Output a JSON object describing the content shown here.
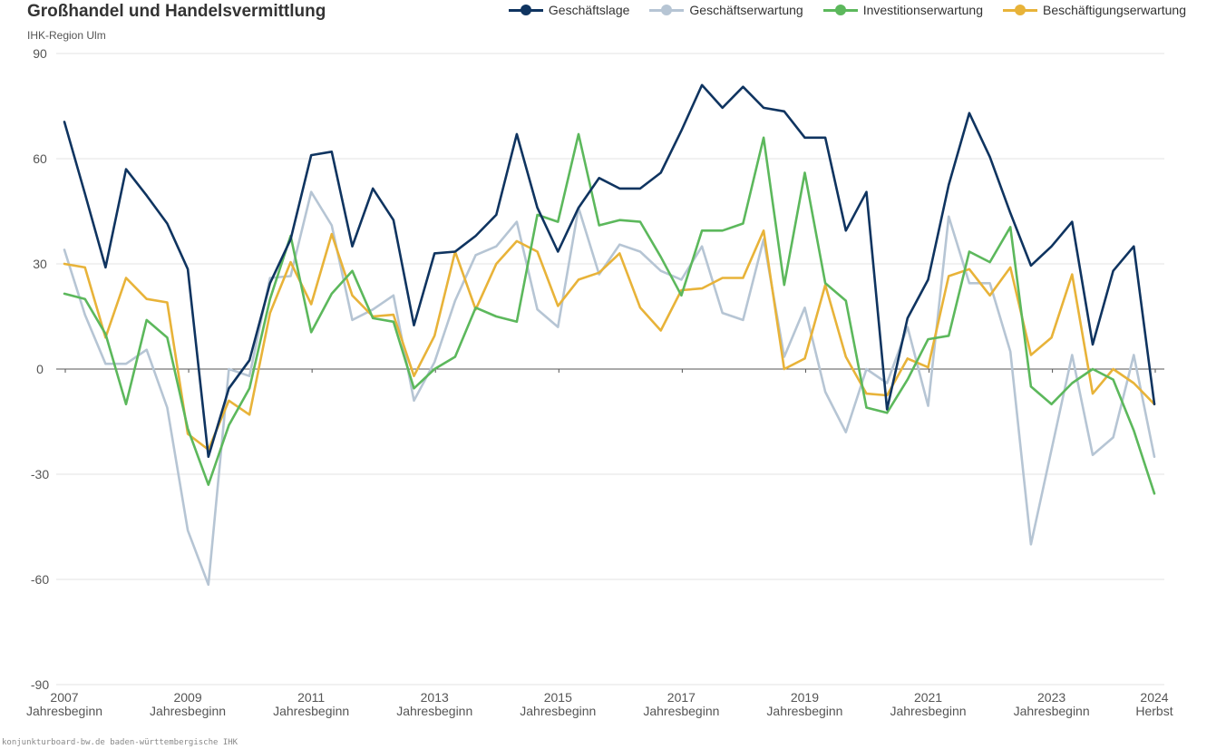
{
  "title": "Großhandel und Handelsvermittlung",
  "subtitle": "IHK-Region Ulm",
  "footer": "konjunkturboard-bw.de baden-württembergische IHK",
  "colors": {
    "Geschäftslage": "#0f3460",
    "Geschäftserwartung": "#b6c5d4",
    "Investitionserwartung": "#5cb85c",
    "Beschäftigungserwartung": "#e8b339",
    "grid": "#e3e3e3",
    "zero_line": "#555555"
  },
  "chart_data": {
    "type": "line",
    "ylim": [
      -90,
      90
    ],
    "y_ticks": [
      90,
      60,
      30,
      0,
      -30,
      -60,
      -90
    ],
    "grid": true,
    "legend_position": "top-right",
    "x_tick_labels": [
      {
        "index": 0,
        "lines": [
          "2007",
          "Jahresbeginn"
        ]
      },
      {
        "index": 6,
        "lines": [
          "2009",
          "Jahresbeginn"
        ]
      },
      {
        "index": 12,
        "lines": [
          "2011",
          "Jahresbeginn"
        ]
      },
      {
        "index": 18,
        "lines": [
          "2013",
          "Jahresbeginn"
        ]
      },
      {
        "index": 24,
        "lines": [
          "2015",
          "Jahresbeginn"
        ]
      },
      {
        "index": 30,
        "lines": [
          "2017",
          "Jahresbeginn"
        ]
      },
      {
        "index": 36,
        "lines": [
          "2019",
          "Jahresbeginn"
        ]
      },
      {
        "index": 42,
        "lines": [
          "2021",
          "Jahresbeginn"
        ]
      },
      {
        "index": 48,
        "lines": [
          "2023",
          "Jahresbeginn"
        ]
      },
      {
        "index": 53,
        "lines": [
          "2024",
          "Herbst"
        ]
      }
    ],
    "series": [
      {
        "name": "Geschäftslage",
        "values": [
          70.5,
          50,
          29,
          57,
          49.5,
          41.5,
          28.5,
          -25,
          -5.5,
          2.5,
          24.5,
          37,
          61,
          62,
          35,
          51.5,
          42.5,
          12.5,
          33,
          33.5,
          38,
          44,
          67,
          46,
          33.5,
          46,
          54.5,
          51.5,
          51.5,
          56,
          68,
          81,
          74.5,
          80.5,
          74.5,
          73.5,
          66,
          66,
          39.5,
          50.5,
          -11.5,
          14.5,
          25.5,
          52.5,
          73,
          60.5,
          44.5,
          29.5,
          35,
          42,
          7,
          28,
          35,
          -10
        ]
      },
      {
        "name": "Geschäftserwartung",
        "values": [
          34,
          15.5,
          1.5,
          1.5,
          5.5,
          -11,
          -46,
          -61.5,
          0,
          -2,
          26,
          26.5,
          50.5,
          41,
          14,
          17,
          21,
          -9,
          2,
          19.5,
          32.5,
          35,
          42,
          17,
          12,
          46,
          27,
          35.5,
          33.5,
          28,
          25.5,
          35,
          16,
          14,
          37,
          3.5,
          17.5,
          -6.5,
          -18,
          0,
          -4,
          12,
          -10.5,
          43.5,
          24.5,
          24.5,
          5,
          -50,
          -23,
          4,
          -24.5,
          -19.5,
          4,
          -25
        ]
      },
      {
        "name": "Investitionserwartung",
        "values": [
          21.5,
          20,
          10,
          -10,
          14,
          9,
          -17,
          -33,
          -16,
          -5.5,
          20,
          38,
          10.5,
          21.5,
          28,
          14.5,
          13.5,
          -5.5,
          0,
          3.5,
          17.5,
          15,
          13.5,
          44,
          42,
          67,
          41,
          42.5,
          42,
          32,
          21,
          39.5,
          39.5,
          41.5,
          66,
          24,
          56,
          24.5,
          19.5,
          -11,
          -12.5,
          -3,
          8.5,
          9.5,
          33.5,
          30.5,
          40.5,
          -5,
          -10,
          -4,
          0,
          -3,
          -17.5,
          -35.5
        ]
      },
      {
        "name": "Beschäftigungserwartung",
        "values": [
          30,
          29,
          9,
          26,
          20,
          19,
          -18.5,
          -23,
          -9,
          -13,
          16,
          30.5,
          18.5,
          38.5,
          21,
          15,
          15.5,
          -2,
          9.5,
          33.5,
          17,
          30,
          36.5,
          33.5,
          18,
          25.5,
          27.5,
          33,
          17.5,
          11,
          22.5,
          23,
          26,
          26,
          39.5,
          0,
          3,
          24,
          3.5,
          -7,
          -7.5,
          3,
          0.5,
          26.5,
          28.5,
          21,
          29,
          4,
          9,
          27,
          -7,
          0,
          -4,
          -10
        ]
      }
    ]
  }
}
